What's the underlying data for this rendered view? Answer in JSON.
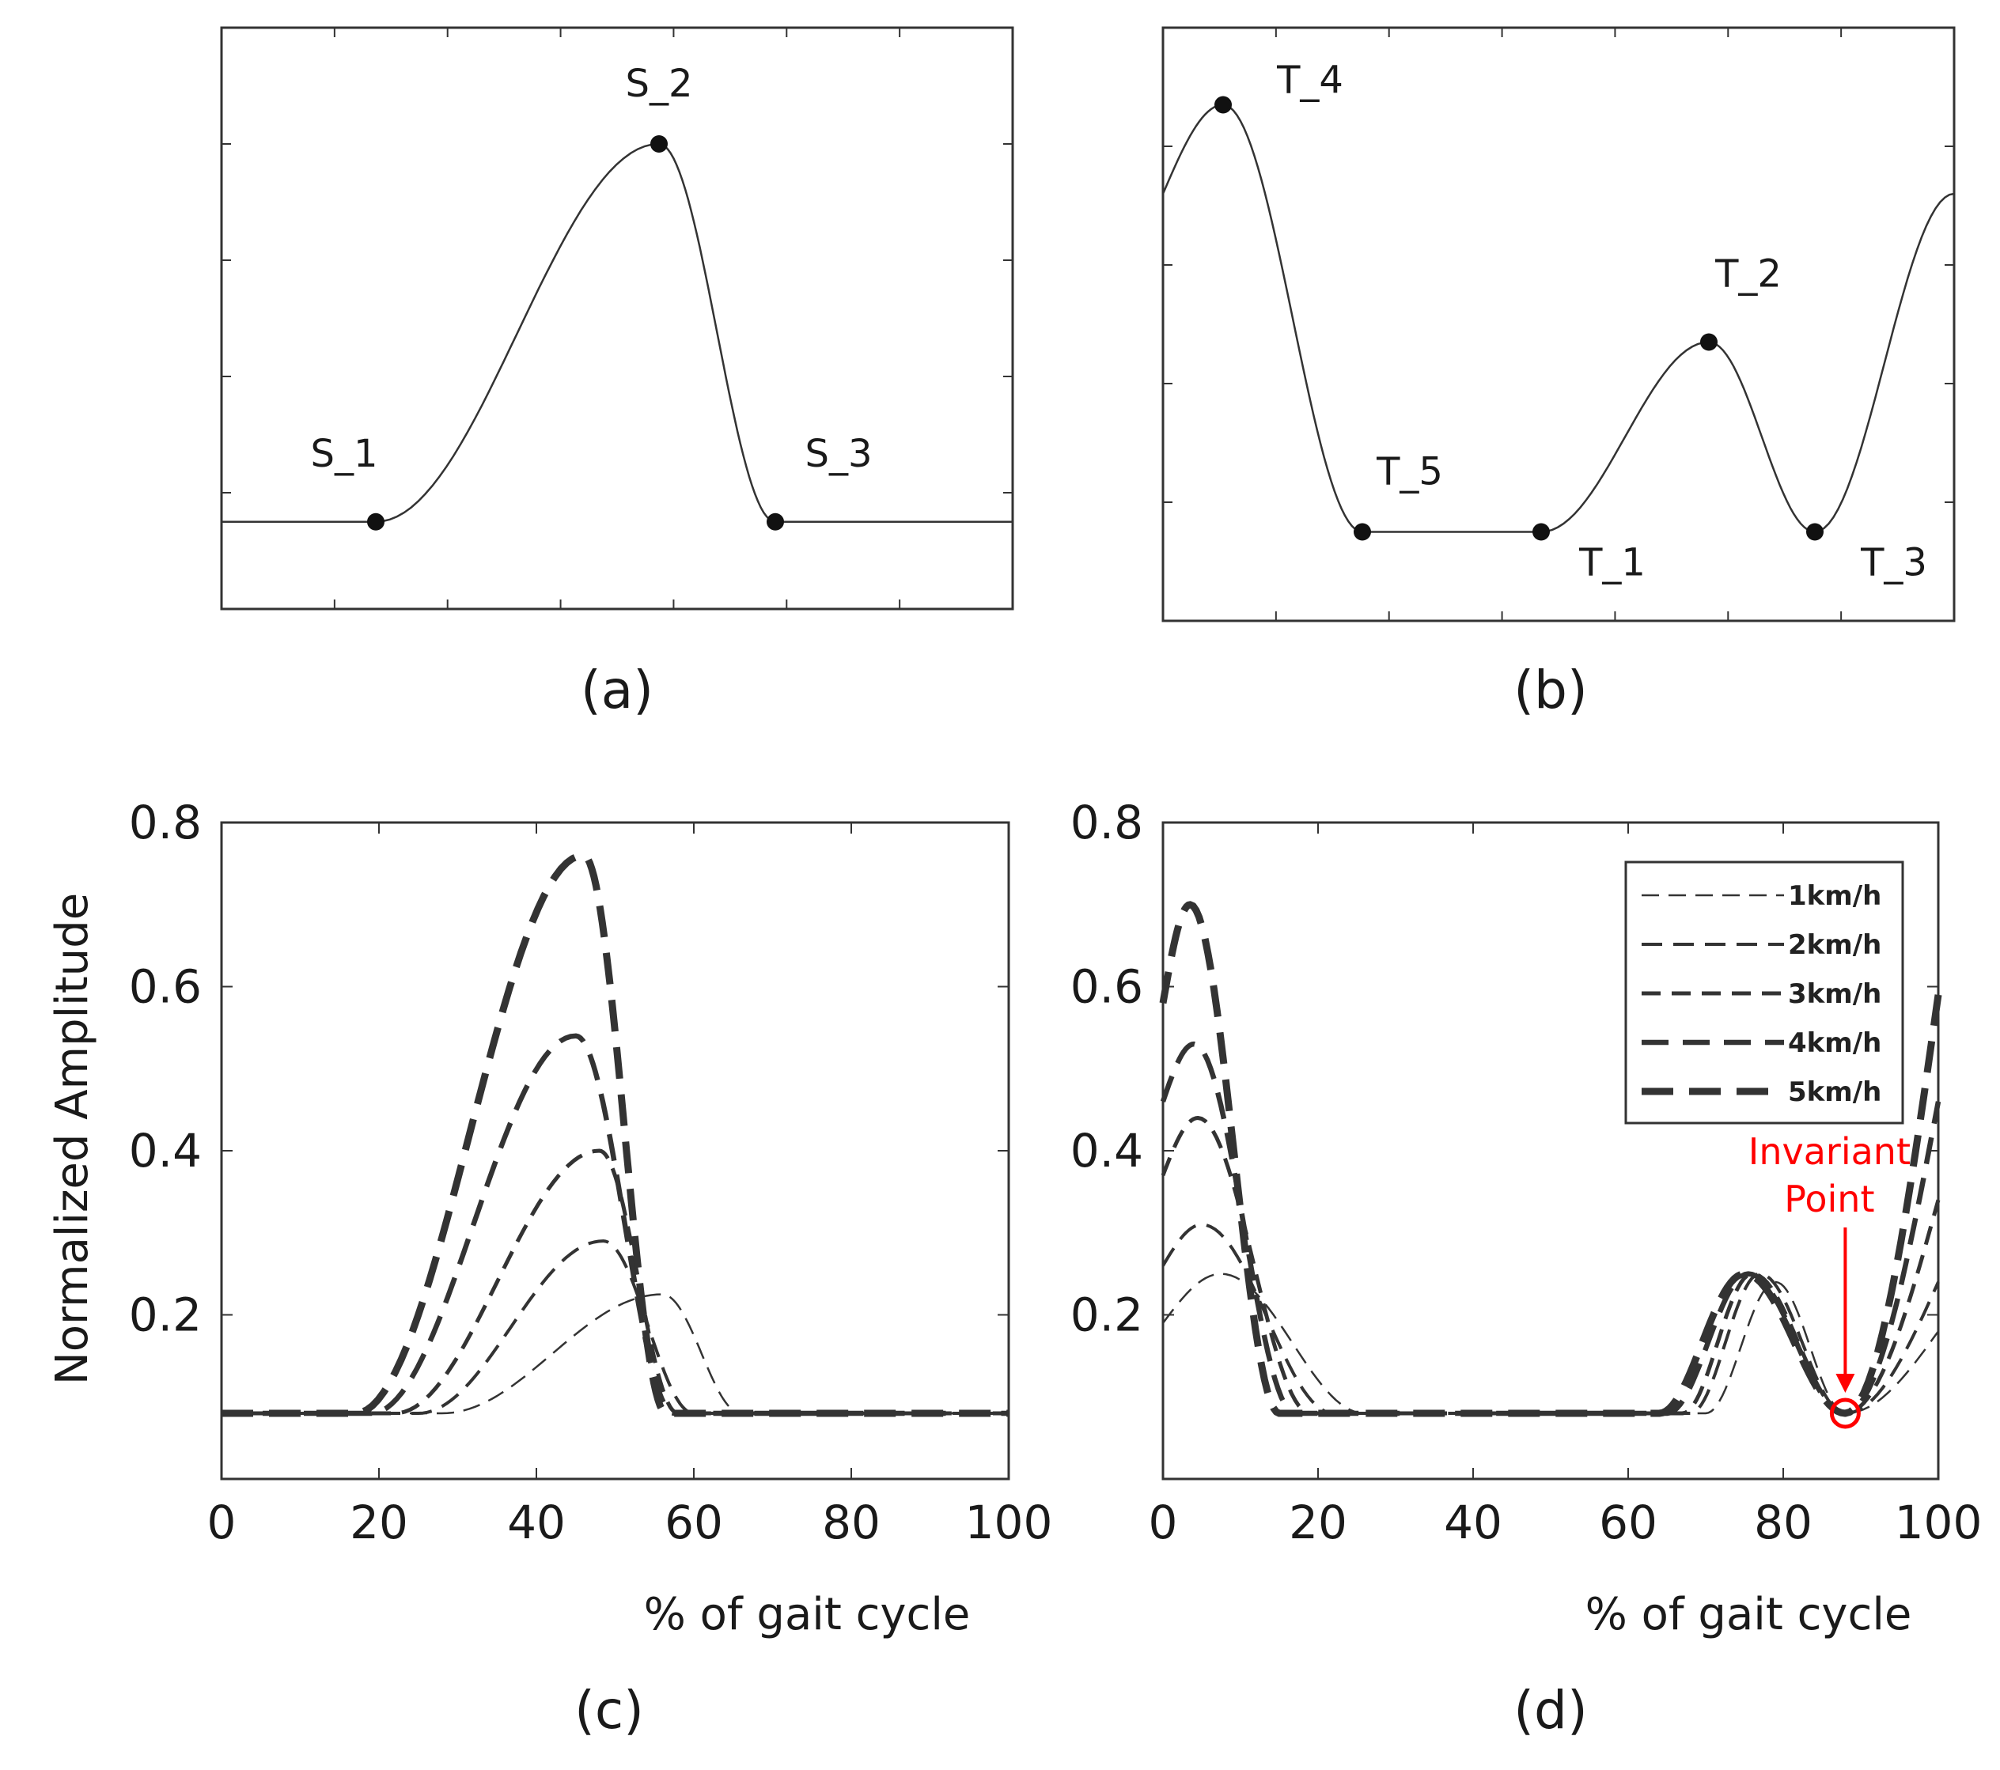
{
  "chart_data": [
    {
      "id": "a",
      "type": "line",
      "label": "(a)",
      "xlim": [
        0,
        100
      ],
      "ylim": [
        0,
        100
      ],
      "baseline": 15,
      "points": [
        {
          "name": "S_1",
          "x": 19.5,
          "y": 15
        },
        {
          "name": "S_2",
          "x": 55.3,
          "y": 80
        },
        {
          "name": "S_3",
          "x": 70,
          "y": 15
        }
      ]
    },
    {
      "id": "b",
      "type": "line",
      "label": "(b)",
      "xlim": [
        0,
        100
      ],
      "ylim": [
        0,
        100
      ],
      "points": [
        {
          "name": "T_4",
          "x": 7.6,
          "y": 87
        },
        {
          "name": "T_5",
          "x": 25.2,
          "y": 15
        },
        {
          "name": "T_1",
          "x": 47.8,
          "y": 15
        },
        {
          "name": "T_2",
          "x": 69,
          "y": 47
        },
        {
          "name": "T_3",
          "x": 82.4,
          "y": 15
        }
      ]
    },
    {
      "id": "c",
      "type": "line",
      "label": "(c)",
      "xlabel": "% of gait cycle",
      "ylabel": "Normalized Amplitude",
      "xlim": [
        0,
        100
      ],
      "ylim": [
        0,
        0.8
      ],
      "xticks": [
        "0",
        "20",
        "40",
        "60",
        "80",
        "100"
      ],
      "yticks": [
        "0.2",
        "0.4",
        "0.6",
        "0.8"
      ],
      "baseline": 0.08,
      "series": [
        {
          "name": "1km/h",
          "start": 28,
          "peak_x": 56,
          "peak_y": 0.225,
          "end": 66
        },
        {
          "name": "2km/h",
          "start": 25,
          "peak_x": 48.5,
          "peak_y": 0.29,
          "end": 60
        },
        {
          "name": "3km/h",
          "start": 22,
          "peak_x": 48,
          "peak_y": 0.4,
          "end": 58
        },
        {
          "name": "4km/h",
          "start": 19,
          "peak_x": 45,
          "peak_y": 0.54,
          "end": 57.5
        },
        {
          "name": "5km/h",
          "start": 17,
          "peak_x": 46,
          "peak_y": 0.76,
          "end": 56.5
        }
      ]
    },
    {
      "id": "d",
      "type": "line",
      "label": "(d)",
      "xlabel": "% of gait cycle",
      "xlim": [
        0,
        100
      ],
      "ylim": [
        0,
        0.8
      ],
      "xticks": [
        "0",
        "20",
        "40",
        "60",
        "80",
        "100"
      ],
      "yticks": [
        "0.2",
        "0.4",
        "0.6",
        "0.8"
      ],
      "baseline": 0.08,
      "legend": [
        "1km/h",
        "2km/h",
        "3km/h",
        "4km/h",
        "5km/h"
      ],
      "series": [
        {
          "name": "1km/h",
          "start_y": 0.19,
          "peak_x": 7.5,
          "peak_y": 0.25,
          "fall_end": 26,
          "rise_start": 70,
          "p2_x": 79,
          "p2_y": 0.24,
          "end_y": 0.18
        },
        {
          "name": "2km/h",
          "start_y": 0.26,
          "peak_x": 5,
          "peak_y": 0.31,
          "fall_end": 22,
          "rise_start": 68,
          "p2_x": 77,
          "p2_y": 0.25,
          "end_y": 0.24
        },
        {
          "name": "3km/h",
          "start_y": 0.37,
          "peak_x": 4.5,
          "peak_y": 0.44,
          "fall_end": 19,
          "rise_start": 67,
          "p2_x": 76,
          "p2_y": 0.25,
          "end_y": 0.34
        },
        {
          "name": "4km/h",
          "start_y": 0.46,
          "peak_x": 4,
          "peak_y": 0.53,
          "fall_end": 17,
          "rise_start": 65,
          "p2_x": 75.5,
          "p2_y": 0.25,
          "end_y": 0.46
        },
        {
          "name": "5km/h",
          "start_y": 0.58,
          "peak_x": 3.5,
          "peak_y": 0.7,
          "fall_end": 15,
          "rise_start": 64,
          "p2_x": 75,
          "p2_y": 0.25,
          "end_y": 0.59
        }
      ],
      "invariant_point": {
        "x": 88,
        "y": 0.08,
        "label_line1": "Invariant",
        "label_line2": "Point"
      }
    }
  ],
  "colors": {
    "curve": "#333333",
    "frame": "#333333",
    "annotation": "#ff0000"
  }
}
